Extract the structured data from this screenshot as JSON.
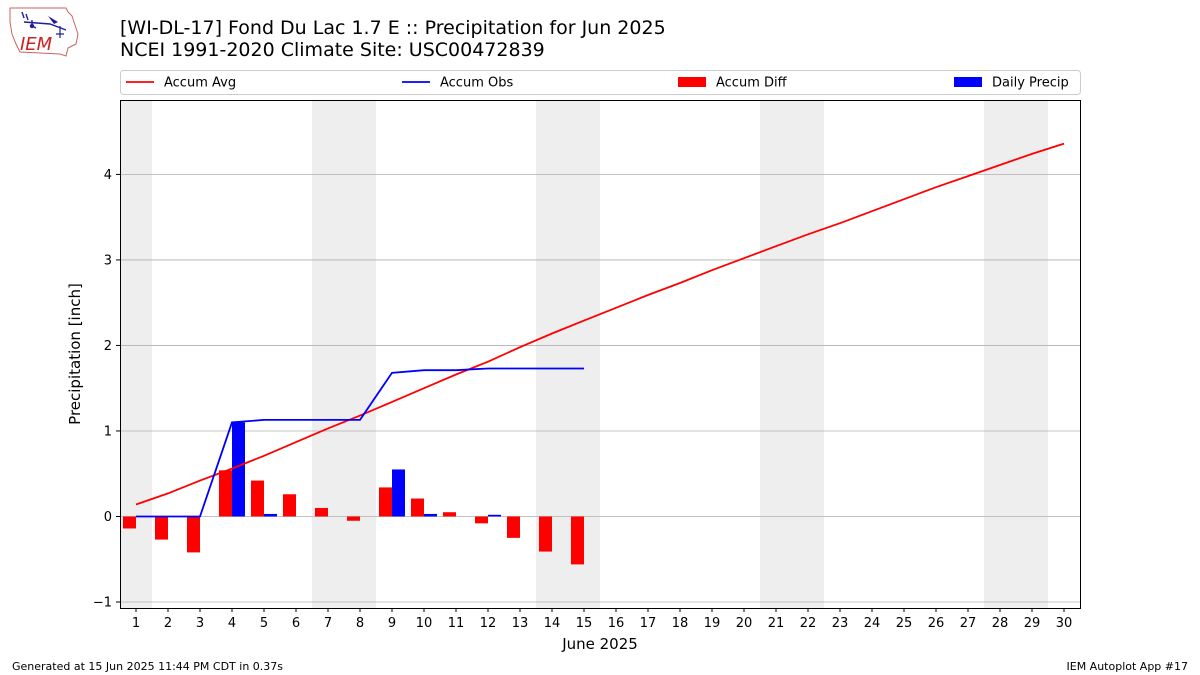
{
  "header": {
    "title_line1": "[WI-DL-17] Fond Du Lac 1.7 E :: Precipitation for Jun 2025",
    "title_line2": "NCEI 1991-2020 Climate Site: USC00472839"
  },
  "logo": {
    "text": "IEM"
  },
  "footer": {
    "generated": "Generated at 15 Jun 2025 11:44 PM CDT in 0.37s",
    "app": "IEM Autoplot App #17"
  },
  "colors": {
    "accum_avg": "#ff0000",
    "accum_obs": "#0000ff",
    "accum_diff": "#ff0000",
    "daily_precip": "#0000ff",
    "weekend_band": "#eeeeee",
    "grid": "#b0b0b0"
  },
  "chart_data": {
    "type": "bar",
    "xlabel": "June 2025",
    "ylabel": "Precipitation [inch]",
    "xlim": [
      0.5,
      30.5
    ],
    "ylim": [
      -1.07,
      4.87
    ],
    "x_ticks": [
      1,
      2,
      3,
      4,
      5,
      6,
      7,
      8,
      9,
      10,
      11,
      12,
      13,
      14,
      15,
      16,
      17,
      18,
      19,
      20,
      21,
      22,
      23,
      24,
      25,
      26,
      27,
      28,
      29,
      30
    ],
    "y_ticks": [
      -1,
      0,
      1,
      2,
      3,
      4
    ],
    "grid": "horizontal",
    "legend_position": "top",
    "weekend_bands": [
      [
        0.5,
        1.5
      ],
      [
        6.5,
        8.5
      ],
      [
        13.5,
        15.5
      ],
      [
        20.5,
        22.5
      ],
      [
        27.5,
        29.5
      ]
    ],
    "series": [
      {
        "name": "Accum Avg",
        "kind": "line",
        "x": [
          1,
          2,
          3,
          4,
          5,
          6,
          7,
          8,
          9,
          10,
          11,
          12,
          13,
          14,
          15,
          16,
          17,
          18,
          19,
          20,
          21,
          22,
          23,
          24,
          25,
          26,
          27,
          28,
          29,
          30
        ],
        "values": [
          0.14,
          0.27,
          0.42,
          0.56,
          0.71,
          0.87,
          1.03,
          1.18,
          1.34,
          1.5,
          1.66,
          1.81,
          1.98,
          2.14,
          2.29,
          2.44,
          2.59,
          2.73,
          2.88,
          3.02,
          3.16,
          3.3,
          3.43,
          3.57,
          3.71,
          3.85,
          3.98,
          4.11,
          4.24,
          4.36
        ]
      },
      {
        "name": "Accum Obs",
        "kind": "line",
        "x": [
          1,
          2,
          3,
          4,
          5,
          6,
          7,
          8,
          9,
          10,
          11,
          12,
          13,
          14,
          15
        ],
        "values": [
          0.0,
          0.0,
          0.0,
          1.1,
          1.13,
          1.13,
          1.13,
          1.13,
          1.68,
          1.71,
          1.71,
          1.73,
          1.73,
          1.73,
          1.73
        ]
      },
      {
        "name": "Accum Diff",
        "kind": "bar",
        "x": [
          1,
          2,
          3,
          4,
          5,
          6,
          7,
          8,
          9,
          10,
          11,
          12,
          13,
          14,
          15
        ],
        "values": [
          -0.14,
          -0.27,
          -0.42,
          0.54,
          0.42,
          0.26,
          0.1,
          -0.05,
          0.34,
          0.21,
          0.05,
          -0.08,
          -0.25,
          -0.41,
          -0.56
        ]
      },
      {
        "name": "Daily Precip",
        "kind": "bar",
        "x": [
          1,
          2,
          3,
          4,
          5,
          6,
          7,
          8,
          9,
          10,
          11,
          12,
          13,
          14,
          15
        ],
        "values": [
          0.0,
          0.0,
          0.0,
          1.1,
          0.03,
          0.0,
          0.0,
          0.0,
          0.55,
          0.03,
          0.0,
          0.02,
          0.0,
          0.0,
          0.0
        ]
      }
    ]
  }
}
